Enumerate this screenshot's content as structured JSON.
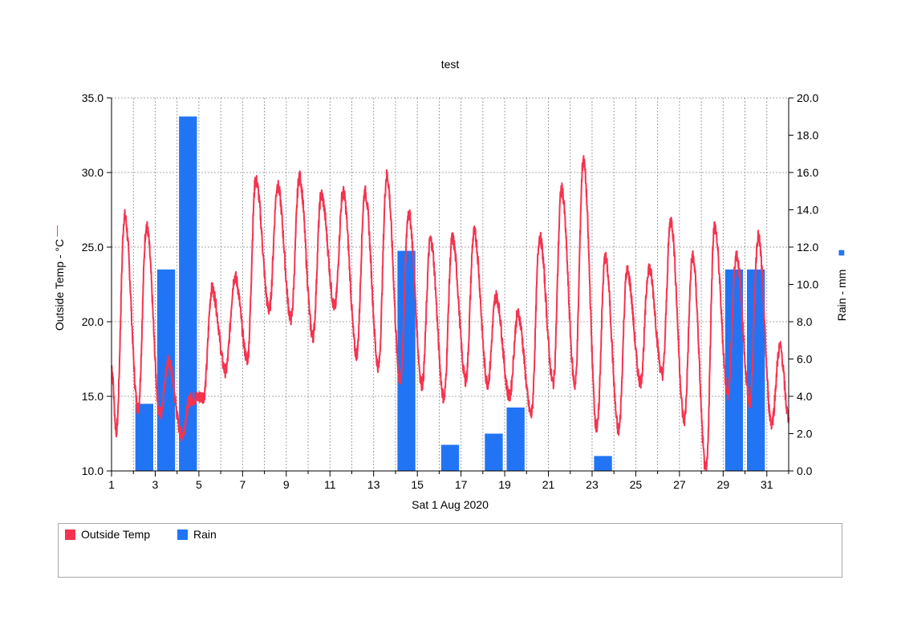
{
  "chart_data": {
    "type": "line+bar",
    "title": "test",
    "xlabel": "Sat 1 Aug 2020",
    "x_tick_labels": [
      "1",
      "3",
      "5",
      "7",
      "9",
      "11",
      "13",
      "15",
      "17",
      "19",
      "21",
      "23",
      "25",
      "27",
      "29",
      "31"
    ],
    "xlim_days": [
      1,
      32
    ],
    "left_axis": {
      "label": "Outside Temp - °C",
      "ylim": [
        10,
        35
      ],
      "tick_labels": [
        "10.0",
        "15.0",
        "20.0",
        "25.0",
        "30.0",
        "35.0"
      ],
      "marker_glyph": "—"
    },
    "right_axis": {
      "label": "Rain - mm",
      "ylim": [
        0,
        20
      ],
      "tick_labels": [
        "0.0",
        "2.0",
        "4.0",
        "6.0",
        "8.0",
        "10.0",
        "12.0",
        "14.0",
        "16.0",
        "18.0",
        "20.0"
      ],
      "marker_glyph": "■"
    },
    "grid": true,
    "series": [
      {
        "name": "Outside Temp",
        "kind": "line",
        "axis": "left",
        "color": "#f5334f",
        "daily_min": [
          12.7,
          14.2,
          13.8,
          12.4,
          15.0,
          16.7,
          17.5,
          20.8,
          20.2,
          19.0,
          21.0,
          17.8,
          17.0,
          16.0,
          15.8,
          14.9,
          16.1,
          15.9,
          15.0,
          13.8,
          15.9,
          15.8,
          12.8,
          12.7,
          16.0,
          16.5,
          13.4,
          10.0,
          15.2,
          14.6,
          13.2
        ],
        "daily_max": [
          27.1,
          26.4,
          17.3,
          14.8,
          22.2,
          23.0,
          29.5,
          29.1,
          29.7,
          28.5,
          28.7,
          28.7,
          29.8,
          27.3,
          25.5,
          25.6,
          26.0,
          21.7,
          20.5,
          25.7,
          28.9,
          30.8,
          24.3,
          23.4,
          23.6,
          26.8,
          24.4,
          26.4,
          24.5,
          25.7,
          18.3
        ],
        "peak_time_of_day": [
          0.6,
          0.6,
          0.6,
          0.6,
          0.6,
          0.65,
          0.6,
          0.6,
          0.6,
          0.6,
          0.6,
          0.6,
          0.6,
          0.6,
          0.6,
          0.6,
          0.6,
          0.6,
          0.6,
          0.6,
          0.6,
          0.6,
          0.6,
          0.6,
          0.6,
          0.6,
          0.6,
          0.6,
          0.6,
          0.6,
          0.6
        ],
        "start_value": 17.0,
        "end_value": 13.6
      },
      {
        "name": "Rain",
        "kind": "bar",
        "axis": "right",
        "color": "#2175f5",
        "days": [
          3,
          4,
          5,
          15,
          17,
          19,
          20,
          24,
          30,
          31
        ],
        "values": [
          3.6,
          10.8,
          19.0,
          11.8,
          1.4,
          2.0,
          3.4,
          0.8,
          10.8,
          10.8
        ]
      }
    ]
  },
  "legend": {
    "items": [
      {
        "label": "Outside Temp",
        "color": "#f5334f"
      },
      {
        "label": "Rain",
        "color": "#2175f5"
      }
    ]
  }
}
